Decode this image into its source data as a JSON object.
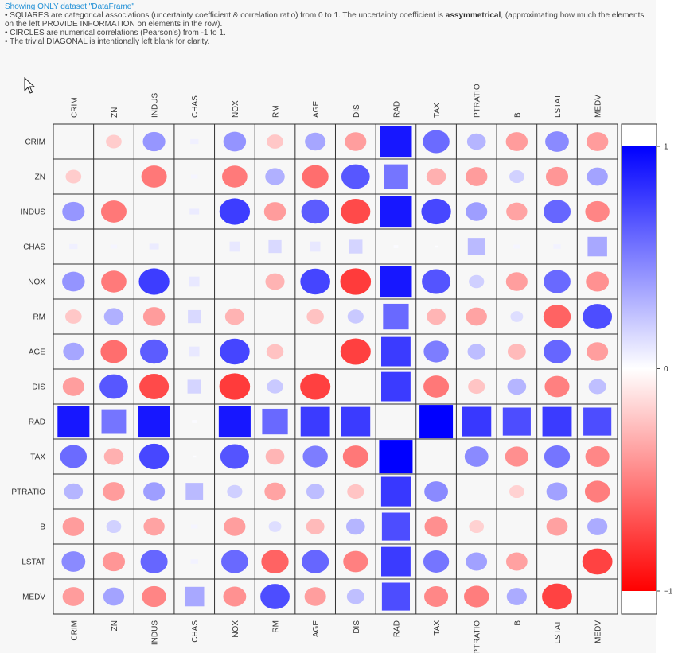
{
  "header": {
    "title": "Showing ONLY dataset \"DataFrame\"",
    "line1_pre": "• SQUARES are categorical associations (uncertainty coefficient & correlation ratio) from 0 to 1. The uncertainty coefficient is ",
    "line1_bold": "assymmetrical",
    "line1_post": ", (approximating how much the elements on the left PROVIDE INFORMATION on elements in the row).",
    "line2": "• CIRCLES are numerical correlations (Pearson's) from -1 to 1.",
    "line3": "• The trivial DIAGONAL is intentionally left blank for clarity."
  },
  "colors": {
    "positive": "#0000ff",
    "negative": "#ff0000",
    "neutral": "#ffffff",
    "grid": "#333333"
  },
  "cursor_icon": "arrow-cursor-icon",
  "chart_data": {
    "type": "heatmap",
    "variables": [
      "CRIM",
      "ZN",
      "INDUS",
      "CHAS",
      "NOX",
      "RM",
      "AGE",
      "DIS",
      "RAD",
      "TAX",
      "PTRATIO",
      "B",
      "LSTAT",
      "MEDV"
    ],
    "categorical": [
      "CHAS",
      "RAD"
    ],
    "values": [
      [
        null,
        -0.2,
        0.41,
        0.06,
        0.42,
        -0.22,
        0.35,
        -0.38,
        0.91,
        0.58,
        0.29,
        -0.39,
        0.46,
        -0.39
      ],
      [
        -0.2,
        null,
        -0.53,
        0.04,
        -0.52,
        0.31,
        -0.57,
        0.66,
        0.54,
        -0.31,
        -0.39,
        0.18,
        -0.41,
        0.36
      ],
      [
        0.41,
        -0.53,
        null,
        0.08,
        0.76,
        -0.39,
        0.64,
        -0.71,
        0.91,
        0.72,
        0.38,
        -0.36,
        0.6,
        -0.48
      ],
      [
        0.06,
        0.04,
        0.08,
        null,
        0.09,
        0.15,
        0.09,
        0.17,
        0.02,
        0.01,
        0.27,
        0.04,
        0.05,
        0.34
      ],
      [
        0.42,
        -0.52,
        0.76,
        0.09,
        null,
        -0.3,
        0.73,
        -0.77,
        0.91,
        0.67,
        0.19,
        -0.38,
        0.59,
        -0.43
      ],
      [
        -0.22,
        0.31,
        -0.39,
        0.15,
        -0.3,
        null,
        -0.24,
        0.21,
        0.59,
        -0.29,
        -0.36,
        0.13,
        -0.61,
        0.7
      ],
      [
        0.35,
        -0.57,
        0.64,
        0.09,
        0.73,
        -0.24,
        null,
        -0.75,
        0.77,
        0.51,
        0.26,
        -0.27,
        0.6,
        -0.38
      ],
      [
        -0.38,
        0.66,
        -0.71,
        0.17,
        -0.77,
        0.21,
        -0.75,
        null,
        0.77,
        -0.53,
        -0.23,
        0.29,
        -0.5,
        0.25
      ],
      [
        0.91,
        0.54,
        0.91,
        0.02,
        0.91,
        0.59,
        0.77,
        0.77,
        null,
        1.0,
        0.78,
        0.7,
        0.77,
        0.7
      ],
      [
        0.58,
        -0.31,
        0.72,
        0.01,
        0.67,
        -0.29,
        0.51,
        -0.53,
        1.0,
        null,
        0.46,
        -0.44,
        0.54,
        -0.47
      ],
      [
        0.29,
        -0.39,
        0.38,
        0.27,
        0.19,
        -0.36,
        0.26,
        -0.23,
        0.78,
        0.46,
        null,
        -0.18,
        0.37,
        -0.51
      ],
      [
        -0.39,
        0.18,
        -0.36,
        0.04,
        -0.38,
        0.13,
        -0.27,
        0.29,
        0.7,
        -0.44,
        -0.18,
        null,
        -0.37,
        0.33
      ],
      [
        0.46,
        -0.41,
        0.6,
        0.05,
        0.59,
        -0.61,
        0.6,
        -0.5,
        0.77,
        0.54,
        0.37,
        -0.37,
        null,
        -0.74
      ],
      [
        -0.39,
        0.36,
        -0.48,
        0.34,
        -0.43,
        0.7,
        -0.38,
        0.25,
        0.7,
        -0.47,
        -0.51,
        0.33,
        -0.74,
        null
      ]
    ],
    "colorbar": {
      "min": -1,
      "max": 1,
      "tick_labels": [
        "1",
        "0",
        "−1"
      ]
    }
  }
}
